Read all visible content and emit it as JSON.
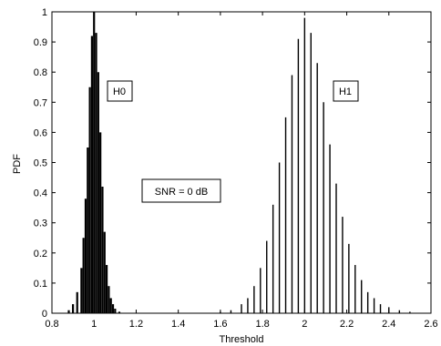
{
  "chart_data": {
    "type": "bar",
    "title": "",
    "xlabel": "Threshold",
    "ylabel": "PDF",
    "xlim": [
      0.8,
      2.6
    ],
    "ylim": [
      0,
      1
    ],
    "xticks": [
      "0.8",
      "1",
      "1.2",
      "1.4",
      "1.6",
      "1.8",
      "2",
      "2.2",
      "2.4",
      "2.6"
    ],
    "yticks": [
      "0",
      "0.1",
      "0.2",
      "0.3",
      "0.4",
      "0.5",
      "0.6",
      "0.7",
      "0.8",
      "0.9",
      "1"
    ],
    "grid": false,
    "series": [
      {
        "name": "H0",
        "color": "#000000",
        "x": [
          0.88,
          0.9,
          0.92,
          0.94,
          0.95,
          0.96,
          0.97,
          0.98,
          0.99,
          1.0,
          1.01,
          1.02,
          1.03,
          1.04,
          1.05,
          1.06,
          1.07,
          1.08,
          1.09,
          1.1,
          1.12
        ],
        "y": [
          0.01,
          0.03,
          0.07,
          0.15,
          0.25,
          0.38,
          0.55,
          0.75,
          0.92,
          1.0,
          0.93,
          0.8,
          0.6,
          0.42,
          0.27,
          0.16,
          0.09,
          0.05,
          0.03,
          0.015,
          0.005
        ]
      },
      {
        "name": "H1",
        "color": "#000000",
        "x": [
          1.6,
          1.65,
          1.7,
          1.73,
          1.76,
          1.79,
          1.82,
          1.85,
          1.88,
          1.91,
          1.94,
          1.97,
          2.0,
          2.03,
          2.06,
          2.09,
          2.12,
          2.15,
          2.18,
          2.21,
          2.24,
          2.27,
          2.3,
          2.33,
          2.36,
          2.4,
          2.45,
          2.5
        ],
        "y": [
          0.005,
          0.01,
          0.03,
          0.05,
          0.09,
          0.15,
          0.24,
          0.36,
          0.5,
          0.65,
          0.79,
          0.91,
          0.98,
          0.93,
          0.83,
          0.7,
          0.56,
          0.43,
          0.32,
          0.23,
          0.16,
          0.11,
          0.07,
          0.05,
          0.03,
          0.02,
          0.01,
          0.005
        ]
      }
    ],
    "annotations": [
      {
        "text": "H0"
      },
      {
        "text": "H1"
      },
      {
        "text": "SNR = 0 dB"
      }
    ]
  }
}
